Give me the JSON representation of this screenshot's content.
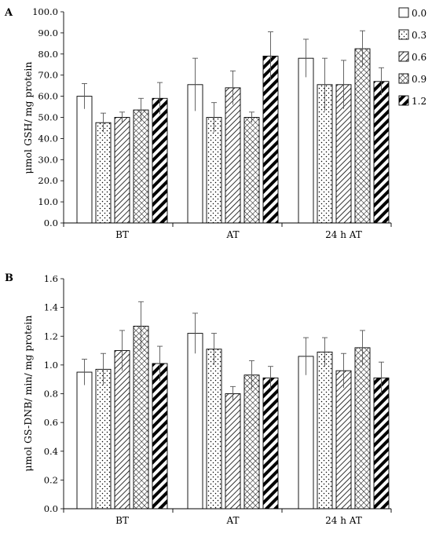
{
  "chart_data": [
    {
      "type": "bar",
      "panel_label": "A",
      "ylabel": "μmol GSH/ mg protein",
      "categories": [
        "BT",
        "AT",
        "24 h AT"
      ],
      "ylim": [
        0,
        100
      ],
      "ytick_step": 10,
      "ytick_labels": [
        "0.0",
        "10.0",
        "20.0",
        "30.0",
        "40.0",
        "50.0",
        "60.0",
        "70.0",
        "80.0",
        "90.0",
        "100.0"
      ],
      "legend_placement": "right",
      "grid": false,
      "series": [
        {
          "name": "0.0",
          "pattern": "blank",
          "values": [
            60.0,
            65.5,
            78.0
          ],
          "errors": [
            6.0,
            12.5,
            9.0
          ]
        },
        {
          "name": "0.3",
          "pattern": "dots",
          "values": [
            47.5,
            50.0,
            65.5
          ],
          "errors": [
            4.5,
            7.0,
            12.5
          ]
        },
        {
          "name": "0.6",
          "pattern": "hatch",
          "values": [
            50.0,
            64.0,
            65.5
          ],
          "errors": [
            2.5,
            8.0,
            11.5
          ]
        },
        {
          "name": "0.9",
          "pattern": "cross",
          "values": [
            53.5,
            50.0,
            82.5
          ],
          "errors": [
            5.5,
            2.5,
            8.5
          ]
        },
        {
          "name": "1.2",
          "pattern": "thick",
          "values": [
            59.0,
            79.0,
            67.0
          ],
          "errors": [
            7.5,
            11.5,
            6.5
          ]
        }
      ]
    },
    {
      "type": "bar",
      "panel_label": "B",
      "ylabel": "μmol GS-DNB/ min/ mg protein",
      "categories": [
        "BT",
        "AT",
        "24 h AT"
      ],
      "ylim": [
        0,
        1.6
      ],
      "ytick_step": 0.2,
      "ytick_labels": [
        "0.0",
        "0.2",
        "0.4",
        "0.6",
        "0.8",
        "1.0",
        "1.2",
        "1.4",
        "1.6"
      ],
      "grid": false,
      "series": [
        {
          "name": "0.0",
          "pattern": "blank",
          "values": [
            0.95,
            1.22,
            1.06
          ],
          "errors": [
            0.09,
            0.14,
            0.13
          ]
        },
        {
          "name": "0.3",
          "pattern": "dots",
          "values": [
            0.97,
            1.11,
            1.09
          ],
          "errors": [
            0.11,
            0.11,
            0.1
          ]
        },
        {
          "name": "0.6",
          "pattern": "hatch",
          "values": [
            1.1,
            0.8,
            0.96
          ],
          "errors": [
            0.14,
            0.05,
            0.12
          ]
        },
        {
          "name": "0.9",
          "pattern": "cross",
          "values": [
            1.27,
            0.93,
            1.12
          ],
          "errors": [
            0.17,
            0.1,
            0.12
          ]
        },
        {
          "name": "1.2",
          "pattern": "thick",
          "values": [
            1.01,
            0.91,
            0.91
          ],
          "errors": [
            0.12,
            0.08,
            0.11
          ]
        }
      ]
    }
  ]
}
